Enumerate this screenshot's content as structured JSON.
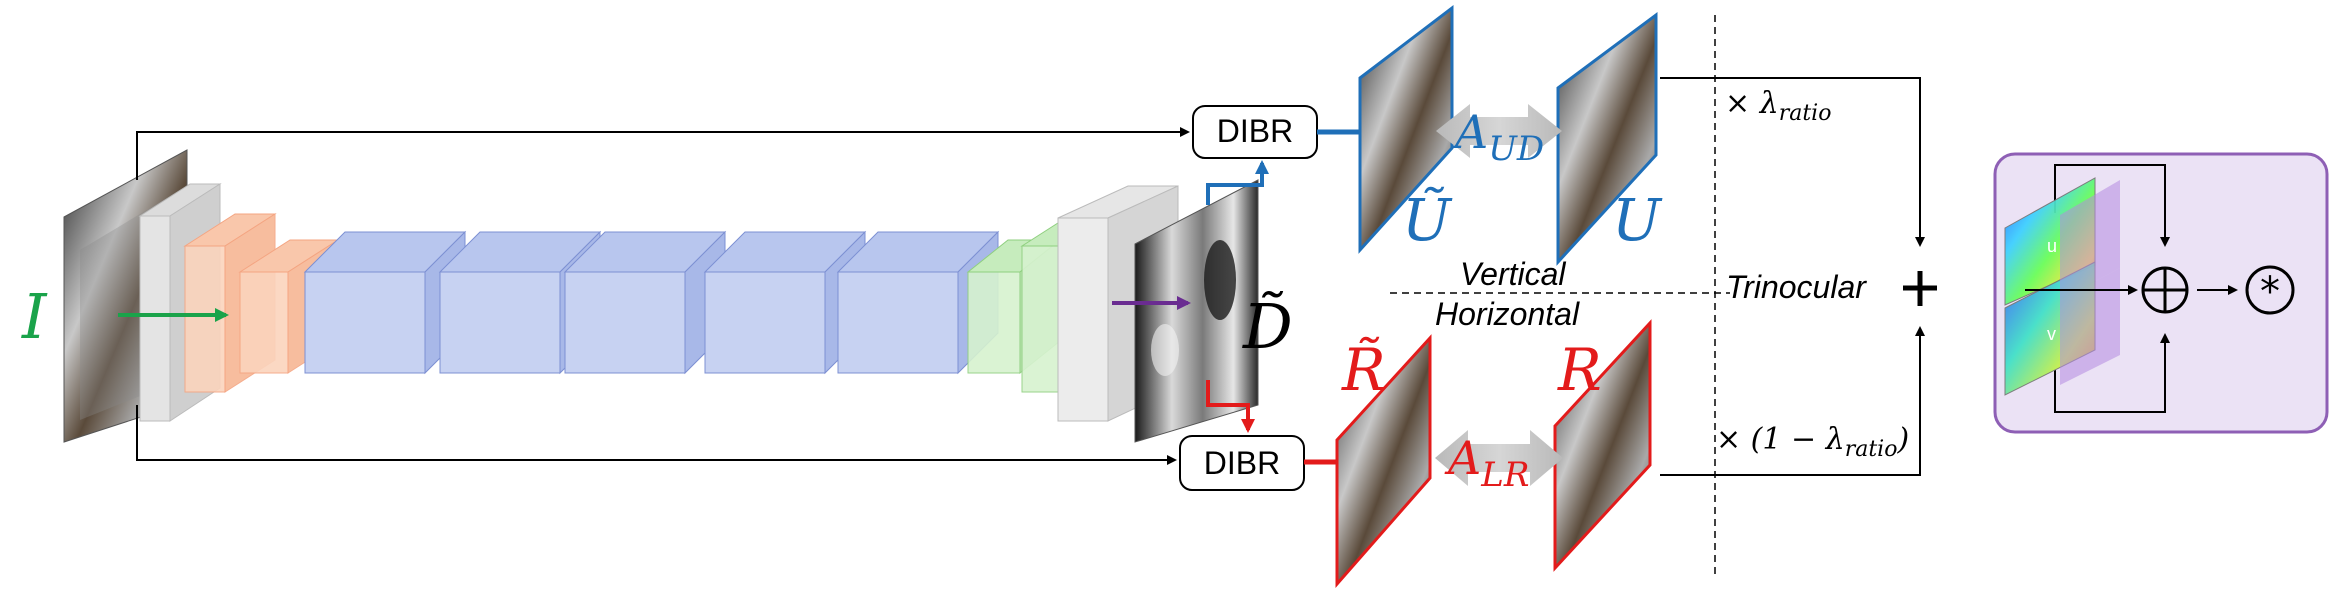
{
  "labels": {
    "input": "I",
    "depth": "D̃",
    "dibr_top": "DIBR",
    "dibr_bottom": "DIBR",
    "u_tilde": "Ũ",
    "u": "U",
    "r_tilde": "R̃",
    "r": "R",
    "a_ud": "A_UD",
    "a_lr": "A_LR",
    "vertical": "Vertical",
    "horizontal": "Horizontal",
    "trinocular": "Trinocular",
    "times_lambda": "× λ_ratio",
    "times_one_minus_lambda": "× (1 − λ_ratio)",
    "inset_u": "u",
    "inset_v": "v"
  },
  "colors": {
    "input_arrow": "#1aa34a",
    "depth_arrow": "#6a2c91",
    "vertical_branch": "#1f6fb8",
    "horizontal_branch": "#e31b1b",
    "encoder_orange": "#f4a582",
    "bottleneck_blue": "#8fa3e0",
    "decoder_green": "#9fd98f",
    "inset_border": "#8e5fb5",
    "inset_fill": "#ebe2f5"
  },
  "icons": {
    "sum": "circled-plus-icon",
    "conv": "circled-asterisk-icon",
    "plus": "plus-icon"
  }
}
